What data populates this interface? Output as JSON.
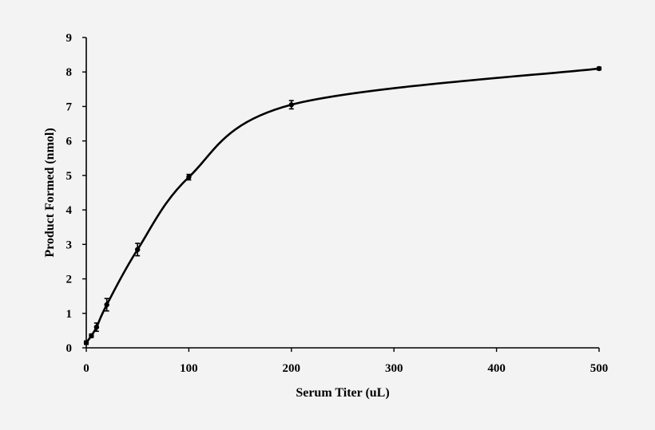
{
  "chart_data": {
    "type": "line",
    "title": "",
    "xlabel": "Serum Titer (uL)",
    "ylabel": "Product Formed (nmol)",
    "xlim": [
      0,
      500
    ],
    "ylim": [
      0,
      9
    ],
    "x_ticks": [
      0,
      100,
      200,
      300,
      400,
      500
    ],
    "y_ticks": [
      0,
      1,
      2,
      3,
      4,
      5,
      6,
      7,
      8,
      9
    ],
    "x_tick_labels": [
      "0",
      "100",
      "200",
      "300",
      "400",
      "500"
    ],
    "y_tick_labels": [
      "0",
      "1",
      "2",
      "3",
      "4",
      "5",
      "6",
      "7",
      "8",
      "9"
    ],
    "grid": false,
    "legend": "none",
    "smooth": true,
    "series": [
      {
        "x": [
          0,
          5,
          10,
          20,
          50,
          100,
          200,
          500
        ],
        "y": [
          0.15,
          0.35,
          0.6,
          1.25,
          2.85,
          4.95,
          7.05,
          8.1
        ],
        "error": [
          0.05,
          0.05,
          0.12,
          0.18,
          0.18,
          0.08,
          0.12,
          0.04
        ]
      }
    ]
  }
}
